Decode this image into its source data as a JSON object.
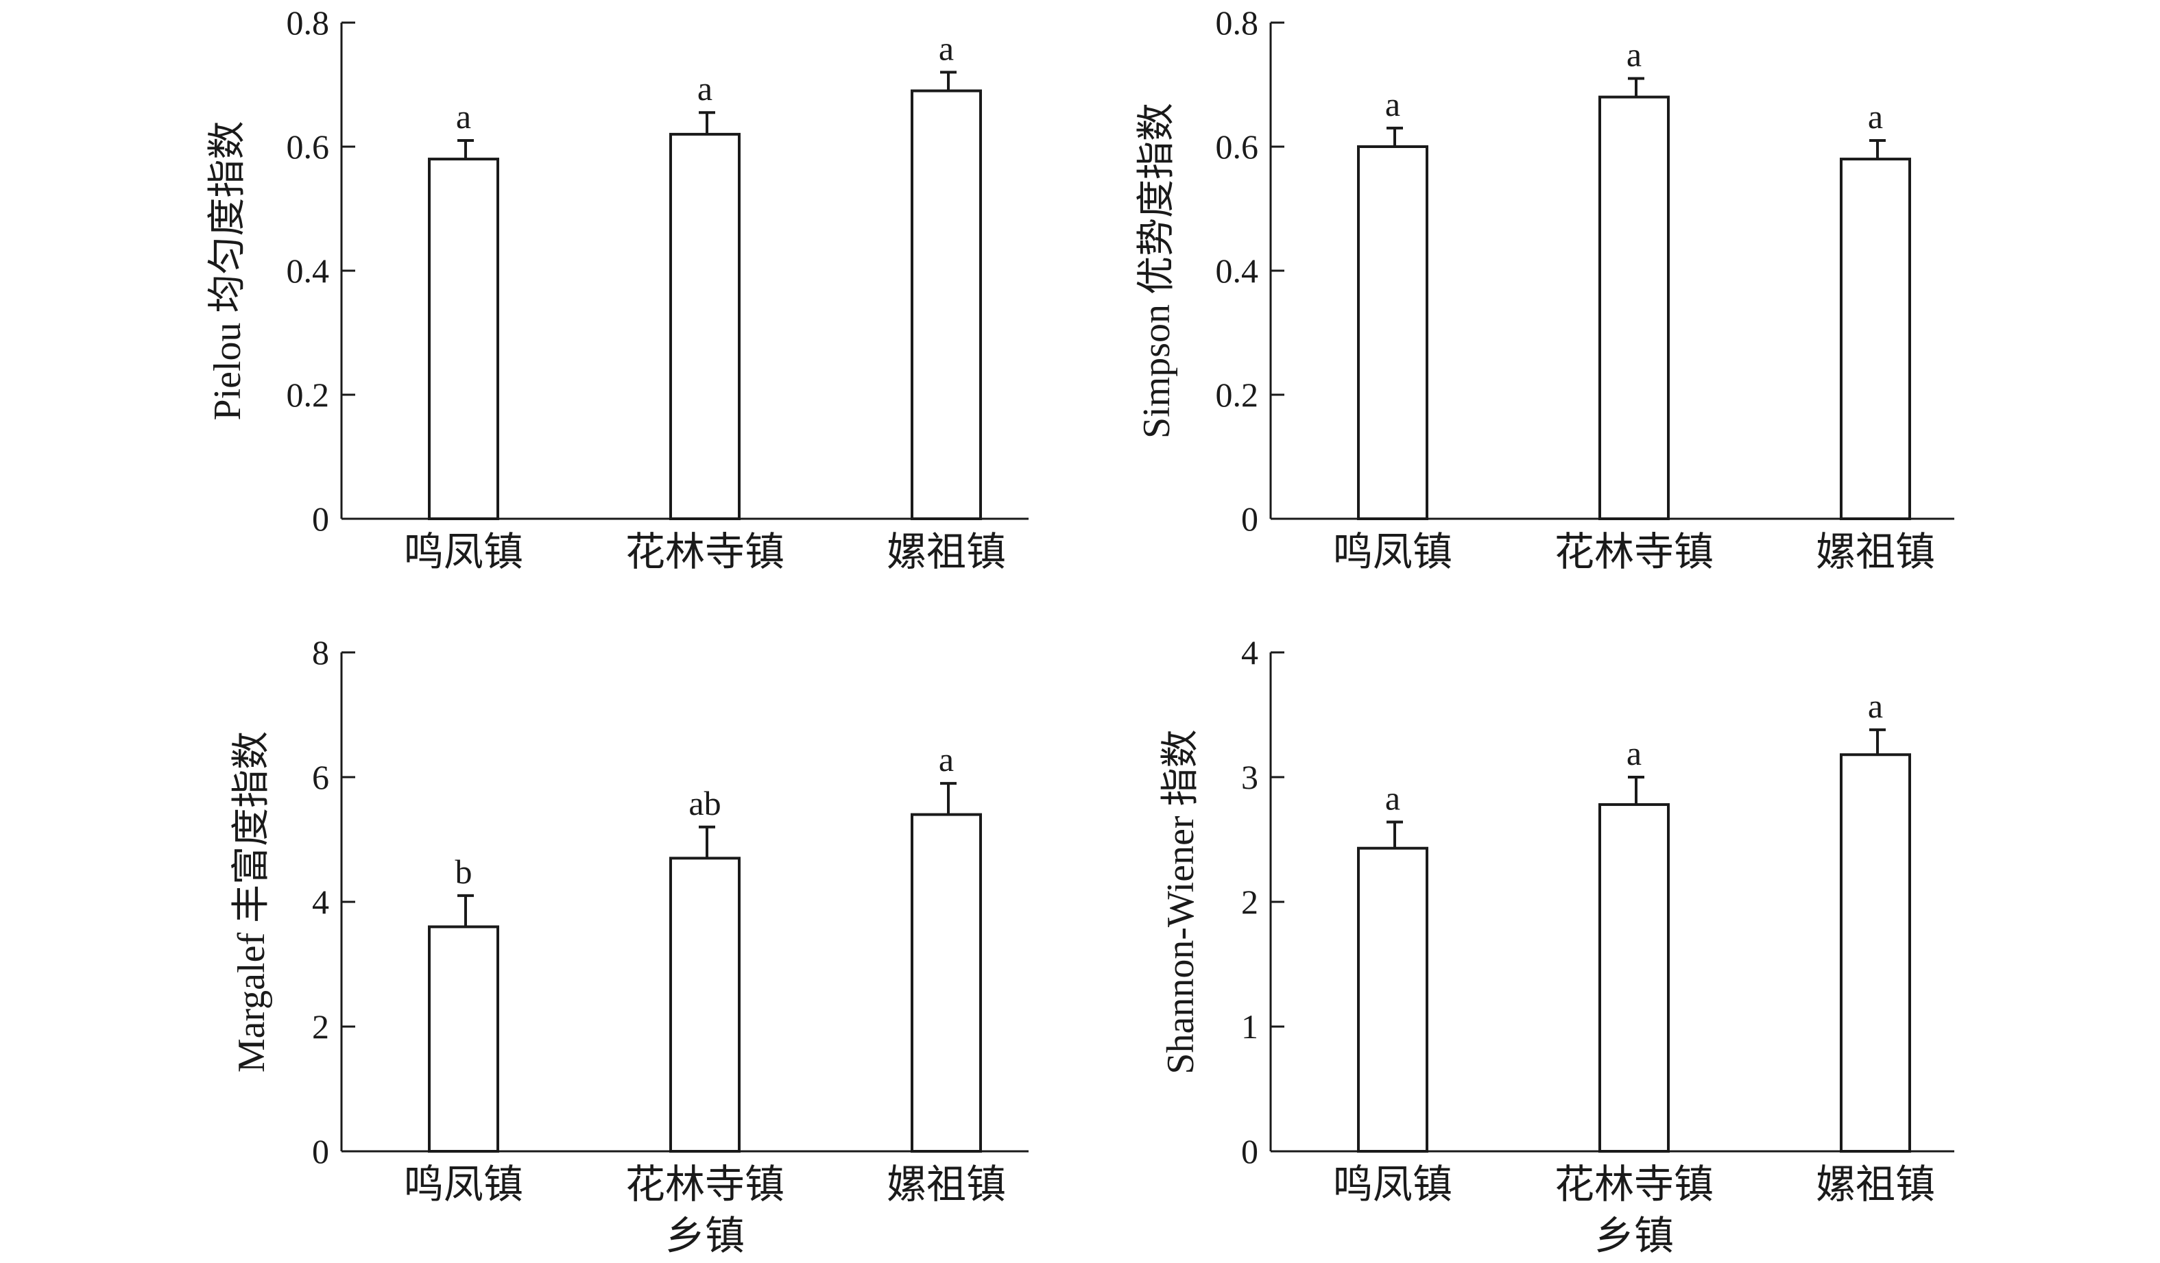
{
  "chart_data": [
    {
      "type": "bar",
      "categories": [
        "鸣凤镇",
        "花林寺镇",
        "嫘祖镇"
      ],
      "values": [
        0.58,
        0.62,
        0.69
      ],
      "errors": [
        0.03,
        0.035,
        0.03
      ],
      "significance": [
        "a",
        "a",
        "a"
      ],
      "ylabel": "Pielou 均匀度指数",
      "xlabel": "",
      "ylim": [
        0,
        0.8
      ],
      "yticks": [
        "0",
        "0.2",
        "0.4",
        "0.6",
        "0.8"
      ]
    },
    {
      "type": "bar",
      "categories": [
        "鸣凤镇",
        "花林寺镇",
        "嫘祖镇"
      ],
      "values": [
        0.6,
        0.68,
        0.58
      ],
      "errors": [
        0.03,
        0.03,
        0.03
      ],
      "significance": [
        "a",
        "a",
        "a"
      ],
      "ylabel": "Simpson 优势度指数",
      "xlabel": "",
      "ylim": [
        0,
        0.8
      ],
      "yticks": [
        "0",
        "0.2",
        "0.4",
        "0.6",
        "0.8"
      ]
    },
    {
      "type": "bar",
      "categories": [
        "鸣凤镇",
        "花林寺镇",
        "嫘祖镇"
      ],
      "values": [
        3.6,
        4.7,
        5.4
      ],
      "errors": [
        0.5,
        0.5,
        0.5
      ],
      "significance": [
        "b",
        "ab",
        "a"
      ],
      "ylabel": "Margalef 丰富度指数",
      "xlabel": "乡镇",
      "ylim": [
        0,
        8
      ],
      "yticks": [
        "0",
        "2",
        "4",
        "6",
        "8"
      ]
    },
    {
      "type": "bar",
      "categories": [
        "鸣凤镇",
        "花林寺镇",
        "嫘祖镇"
      ],
      "values": [
        2.43,
        2.78,
        3.18
      ],
      "errors": [
        0.21,
        0.22,
        0.2
      ],
      "significance": [
        "a",
        "a",
        "a"
      ],
      "ylabel": "Shannon-Wiener 指数",
      "xlabel": "乡镇",
      "ylim": [
        0,
        4
      ],
      "yticks": [
        "0",
        "1",
        "2",
        "3",
        "4"
      ]
    }
  ]
}
